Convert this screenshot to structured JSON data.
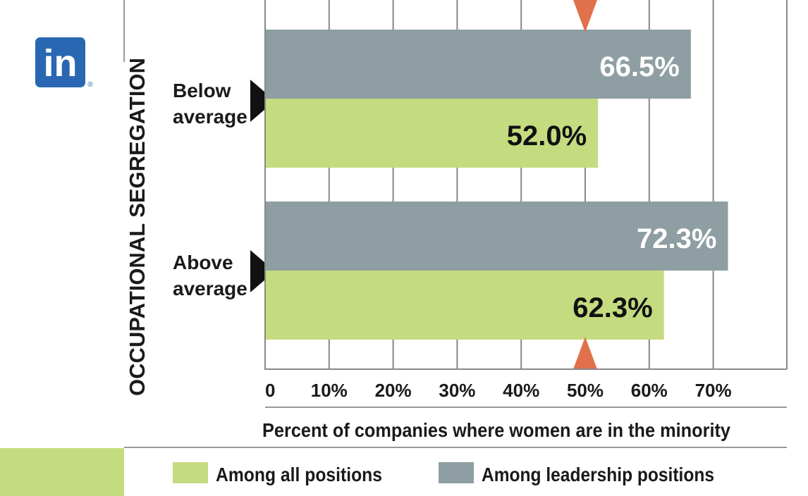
{
  "logo": {
    "text": "in",
    "mark": "®"
  },
  "chart_data": {
    "type": "bar",
    "orientation": "horizontal",
    "ylabel": "OCCUPATIONAL SEGREGATION",
    "xlabel": "Percent of companies where women are in the minority",
    "categories": [
      {
        "line1": "Below",
        "line2": "average"
      },
      {
        "line1": "Above",
        "line2": "average"
      }
    ],
    "series": [
      {
        "name": "Among leadership positions",
        "color": "#8e9ea2",
        "label_color": "#ffffff",
        "values": [
          66.5,
          72.3
        ],
        "labels": [
          "66.5%",
          "72.3%"
        ]
      },
      {
        "name": "Among all positions",
        "color": "#c5db80",
        "label_color": "#111111",
        "values": [
          52.0,
          62.3
        ],
        "labels": [
          "52.0%",
          "62.3%"
        ]
      }
    ],
    "xlim": [
      0,
      80
    ],
    "ticks": [
      {
        "value": 0,
        "label": "0"
      },
      {
        "value": 10,
        "label": "10%"
      },
      {
        "value": 20,
        "label": "20%"
      },
      {
        "value": 30,
        "label": "30%"
      },
      {
        "value": 40,
        "label": "40%"
      },
      {
        "value": 50,
        "label": "50%"
      },
      {
        "value": 60,
        "label": "60%"
      },
      {
        "value": 70,
        "label": "70%"
      }
    ],
    "reference_line": {
      "value": 50,
      "color": "#e0714a"
    },
    "legend": [
      {
        "label": "Among all positions",
        "color": "#c5db80"
      },
      {
        "label": "Among leadership positions",
        "color": "#8e9ea2"
      }
    ],
    "accent_color": "#c5db80"
  }
}
